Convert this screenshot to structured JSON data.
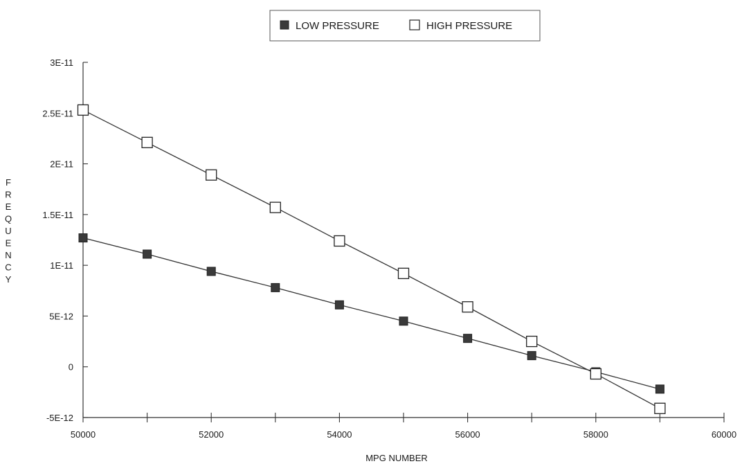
{
  "chart_data": {
    "type": "line",
    "title": "",
    "xlabel": "MPG NUMBER",
    "ylabel": "FREQUENCY",
    "xlim": [
      50000,
      60000
    ],
    "ylim": [
      -5e-12,
      3e-11
    ],
    "x_ticks": [
      50000,
      51000,
      52000,
      53000,
      54000,
      55000,
      56000,
      57000,
      58000,
      59000,
      60000
    ],
    "x_tick_labels": [
      "50000",
      "",
      "52000",
      "",
      "54000",
      "",
      "56000",
      "",
      "58000",
      "",
      "60000"
    ],
    "y_ticks": [
      -5e-12,
      0,
      5e-12,
      1e-11,
      1.5e-11,
      2e-11,
      2.5e-11,
      3e-11
    ],
    "y_tick_labels": [
      "-5E-12",
      "0",
      "5E-12",
      "1E-11",
      "1.5E-11",
      "2E-11",
      "2.5E-11",
      "3E-11"
    ],
    "grid": false,
    "legend_position": "top-center",
    "x": [
      50000,
      51000,
      52000,
      53000,
      54000,
      55000,
      56000,
      57000,
      58000,
      59000
    ],
    "series": [
      {
        "name": "LOW PRESSURE",
        "marker": "filled-square",
        "color": "#3a3a3a",
        "values": [
          1.27e-11,
          1.11e-11,
          9.4e-12,
          7.8e-12,
          6.1e-12,
          4.5e-12,
          2.8e-12,
          1.1e-12,
          -5e-13,
          -2.2e-12
        ]
      },
      {
        "name": "HIGH PRESSURE",
        "marker": "open-square",
        "color": "#ffffff",
        "values": [
          2.53e-11,
          2.21e-11,
          1.89e-11,
          1.57e-11,
          1.24e-11,
          9.2e-12,
          5.9e-12,
          2.5e-12,
          -7e-13,
          -4.1e-12
        ]
      }
    ]
  }
}
